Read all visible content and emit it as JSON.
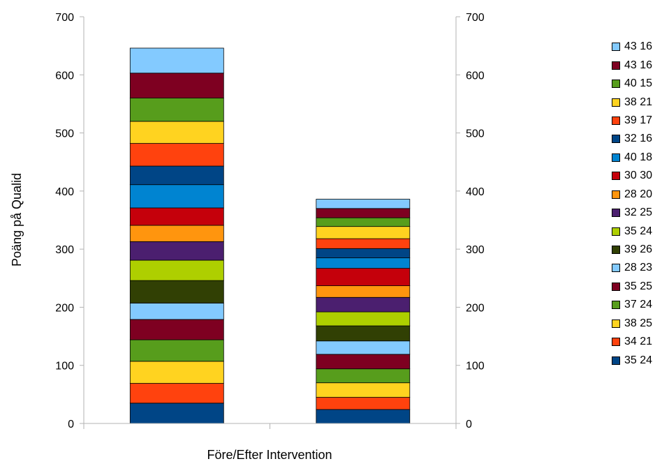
{
  "chart_data": {
    "type": "bar",
    "stacked": true,
    "title": "",
    "xlabel": "Före/Efter Intervention",
    "ylabel": "Poäng på Qualid",
    "ylim": [
      0,
      700
    ],
    "yticks": [
      0,
      100,
      200,
      300,
      400,
      500,
      600,
      700
    ],
    "secondary_y_axis": true,
    "grid": false,
    "legend_position": "right",
    "categories": [
      "",
      ""
    ],
    "series": [
      {
        "name": "35 24",
        "color": "#004586",
        "values": [
          35,
          24
        ]
      },
      {
        "name": "34 21",
        "color": "#ff420e",
        "values": [
          34,
          21
        ]
      },
      {
        "name": "38 25",
        "color": "#ffd320",
        "values": [
          38,
          25
        ]
      },
      {
        "name": "37 24",
        "color": "#579d1c",
        "values": [
          37,
          24
        ]
      },
      {
        "name": "35 25",
        "color": "#7e0021",
        "values": [
          35,
          25
        ]
      },
      {
        "name": "28 23",
        "color": "#83caff",
        "values": [
          28,
          23
        ]
      },
      {
        "name": "39 26",
        "color": "#314004",
        "values": [
          39,
          26
        ]
      },
      {
        "name": "35 24",
        "color": "#aecf00",
        "values": [
          35,
          24
        ]
      },
      {
        "name": "32 25",
        "color": "#4b1f6f",
        "values": [
          32,
          25
        ]
      },
      {
        "name": "28 20",
        "color": "#ff950e",
        "values": [
          28,
          20
        ]
      },
      {
        "name": "30 30",
        "color": "#c5000b",
        "values": [
          30,
          30
        ]
      },
      {
        "name": "40 18",
        "color": "#0084d1",
        "values": [
          40,
          18
        ]
      },
      {
        "name": "32 16",
        "color": "#004586",
        "values": [
          32,
          16
        ]
      },
      {
        "name": "39 17",
        "color": "#ff420e",
        "values": [
          39,
          17
        ]
      },
      {
        "name": "38 21",
        "color": "#ffd320",
        "values": [
          38,
          21
        ]
      },
      {
        "name": "40 15",
        "color": "#579d1c",
        "values": [
          40,
          15
        ]
      },
      {
        "name": "43 16",
        "color": "#7e0021",
        "values": [
          43,
          16
        ]
      },
      {
        "name": "43 16",
        "color": "#83caff",
        "values": [
          43,
          16
        ]
      }
    ]
  }
}
